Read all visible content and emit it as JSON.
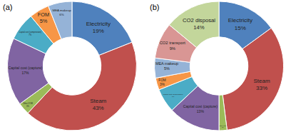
{
  "chart_data": [
    {
      "type": "pie",
      "title": "(a)",
      "categories": [
        "Electricity",
        "Steam",
        "Other VOM",
        "Capital cost (capture)",
        "Capital cost (compression)",
        "FOM",
        "MEA makeup"
      ],
      "values": [
        19,
        43,
        3,
        17,
        7,
        5,
        6
      ],
      "value_labels": [
        "19%",
        "43%",
        "3%",
        "17%",
        "7%",
        "5%",
        "6%"
      ],
      "colors": [
        "#4f81bd",
        "#c0504d",
        "#9bbb59",
        "#8064a2",
        "#4bacc6",
        "#f79646",
        "#95b3d7"
      ],
      "data_labels": true
    },
    {
      "type": "pie",
      "title": "(b)",
      "categories": [
        "Electricity",
        "Steam",
        "Other VOM",
        "Capital cost (capture)",
        "Capital cost (compression)",
        "FOM",
        "MEA makeup",
        "CO2 transport",
        "CO2 disposal"
      ],
      "values": [
        15,
        33,
        2,
        13,
        6,
        3,
        5,
        9,
        14
      ],
      "value_labels": [
        "15%",
        "33%",
        "2%",
        "13%",
        "6%",
        "3%",
        "5%",
        "9%",
        "14%"
      ],
      "colors": [
        "#4f81bd",
        "#c0504d",
        "#9bbb59",
        "#8064a2",
        "#4bacc6",
        "#f79646",
        "#95b3d7",
        "#d99694",
        "#c3d69b"
      ],
      "data_labels": true
    }
  ]
}
